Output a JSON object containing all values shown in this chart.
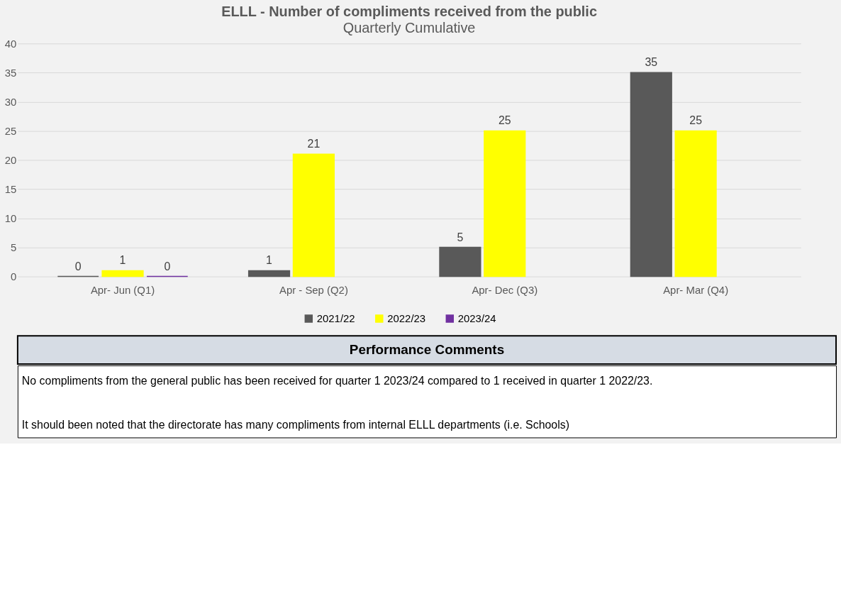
{
  "chart_data": {
    "type": "bar",
    "title": "ELLL - Number of compliments received from the public",
    "subtitle": "Quarterly Cumulative",
    "categories": [
      "Apr- Jun  (Q1)",
      "Apr - Sep  (Q2)",
      "Apr- Dec  (Q3)",
      "Apr- Mar  (Q4)"
    ],
    "series": [
      {
        "name": "2021/22",
        "color": "#595959",
        "values": [
          0,
          1,
          5,
          35
        ]
      },
      {
        "name": "2022/23",
        "color": "#ffff00",
        "values": [
          1,
          21,
          25,
          25
        ]
      },
      {
        "name": "2023/24",
        "color": "#7030a0",
        "values": [
          0,
          null,
          null,
          null
        ]
      }
    ],
    "ylim": [
      0,
      40
    ],
    "yticks": [
      0,
      5,
      10,
      15,
      20,
      25,
      30,
      35,
      40
    ],
    "grid": "y",
    "legend": "bottom",
    "data_labels": true,
    "annotations": [
      "Performance Comments",
      "No compliments from the general public has been received for quarter 1 2023/24 compared to 1 received in quarter 1 2022/23.",
      "It should been noted that the directorate has many compliments from internal ELLL departments (i.e. Schools)"
    ]
  }
}
